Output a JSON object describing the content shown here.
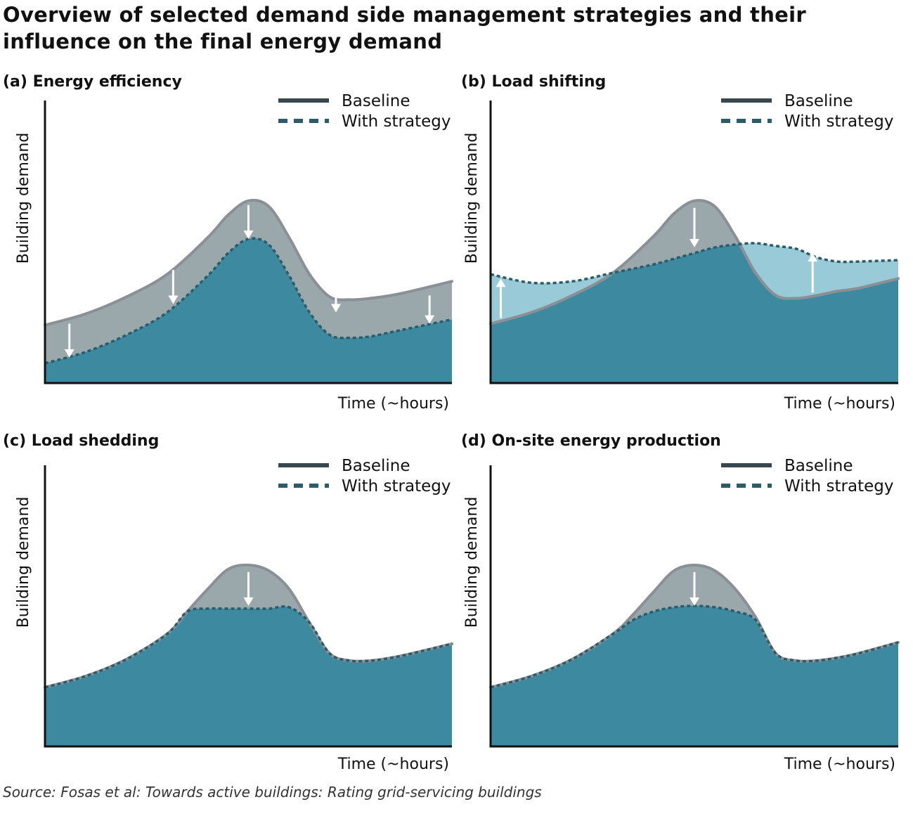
{
  "title": "Overview of selected demand side management strategies and their influence on the final energy demand",
  "source": "Source: Fosas et al: Towards active buildings: Rating grid-servicing buildings",
  "colors": {
    "baseline_line": "#8a9095",
    "baseline_fill": "#9aa7ab",
    "strategy_line": "#2b5c68",
    "strategy_fill": "#3d8aa0",
    "increase_fill": "#99cad8",
    "legend_baseline": "#36484d",
    "legend_strategy": "#2b5c68",
    "axis": "#111111",
    "arrow": "#ffffff"
  },
  "chart_data": [
    {
      "id": "a",
      "type": "area",
      "panel_title": "(a) Energy efficiency",
      "xlabel": "Time (~hours)",
      "ylabel": "Building demand",
      "xlim": [
        0,
        100
      ],
      "ylim": [
        0,
        100
      ],
      "grid": false,
      "legend": {
        "placement": "top-right",
        "entries": [
          "Baseline",
          "With strategy"
        ]
      },
      "x": [
        0,
        10,
        20,
        30,
        40,
        45,
        50,
        55,
        60,
        65,
        70,
        75,
        80,
        85,
        90,
        100
      ],
      "series": [
        {
          "name": "Baseline",
          "values": [
            20.5,
            24.5,
            30.5,
            38.5,
            51.5,
            59.5,
            64.5,
            62.5,
            51.5,
            38.5,
            30.5,
            29.5,
            30,
            31,
            32.5,
            36
          ]
        },
        {
          "name": "With strategy",
          "values": [
            7,
            11,
            17,
            25,
            38,
            46,
            51,
            49,
            38,
            25,
            17,
            16,
            16.5,
            18,
            19.5,
            22.5
          ]
        }
      ],
      "arrows": [
        {
          "x": 6,
          "from": 21,
          "to": 9
        },
        {
          "x": 31.5,
          "from": 40,
          "to": 28
        },
        {
          "x": 50,
          "from": 63,
          "to": 51
        },
        {
          "x": 71.5,
          "from": 35,
          "to": 25
        },
        {
          "x": 94.5,
          "from": 31,
          "to": 21
        }
      ]
    },
    {
      "id": "b",
      "type": "area",
      "panel_title": "(b) Load shifting",
      "xlabel": "Time (~hours)",
      "ylabel": "Building demand",
      "xlim": [
        0,
        100
      ],
      "ylim": [
        0,
        100
      ],
      "grid": false,
      "legend": {
        "placement": "top-right",
        "entries": [
          "Baseline",
          "With strategy"
        ]
      },
      "x": [
        0,
        10,
        20,
        30,
        40,
        45,
        50,
        55,
        60,
        65,
        70,
        75,
        80,
        85,
        90,
        100
      ],
      "series": [
        {
          "name": "Baseline",
          "values": [
            21,
            25,
            31,
            39,
            52,
            60,
            64.5,
            62.5,
            52,
            39,
            31,
            30,
            31,
            32.5,
            33.5,
            37
          ]
        },
        {
          "name": "With strategy",
          "values": [
            38.5,
            35.5,
            36,
            39,
            42,
            44,
            46,
            48,
            49,
            49.5,
            48.5,
            47.5,
            44.5,
            43,
            43,
            43.5
          ]
        }
      ],
      "arrows": [
        {
          "x": 50,
          "from": 62,
          "to": 48
        },
        {
          "x": 2.5,
          "from": 23,
          "to": 37
        },
        {
          "x": 79,
          "from": 32,
          "to": 46
        }
      ]
    },
    {
      "id": "c",
      "type": "area",
      "panel_title": "(c) Load shedding",
      "xlabel": "Time (~hours)",
      "ylabel": "Building demand",
      "xlim": [
        0,
        100
      ],
      "ylim": [
        0,
        100
      ],
      "grid": false,
      "legend": {
        "placement": "top-right",
        "entries": [
          "Baseline",
          "With strategy"
        ]
      },
      "x": [
        0,
        10,
        20,
        30,
        35,
        40,
        45,
        50,
        55,
        60,
        65,
        70,
        75,
        80,
        85,
        90,
        100
      ],
      "series": [
        {
          "name": "Baseline",
          "values": [
            21,
            25,
            31,
            40,
            48,
            56,
            63,
            64.5,
            62.5,
            56,
            44,
            33,
            30.5,
            30.5,
            31.5,
            33,
            36.5
          ]
        },
        {
          "name": "With strategy",
          "values": [
            21,
            25,
            31,
            40,
            48,
            49,
            49,
            49,
            49,
            49.5,
            44,
            33,
            30.5,
            30.5,
            31.5,
            33,
            36.5
          ]
        }
      ],
      "arrows": [
        {
          "x": 50,
          "from": 62,
          "to": 50
        }
      ]
    },
    {
      "id": "d",
      "type": "area",
      "panel_title": "(d) On-site energy production",
      "xlabel": "Time (~hours)",
      "ylabel": "Building demand",
      "xlim": [
        0,
        100
      ],
      "ylim": [
        0,
        100
      ],
      "grid": false,
      "legend": {
        "placement": "top-right",
        "entries": [
          "Baseline",
          "With strategy"
        ]
      },
      "x": [
        0,
        10,
        20,
        30,
        35,
        40,
        45,
        50,
        55,
        60,
        65,
        70,
        75,
        80,
        85,
        90,
        100
      ],
      "series": [
        {
          "name": "Baseline",
          "values": [
            21,
            25,
            31,
            40,
            47,
            55,
            62.5,
            64.5,
            62.5,
            56,
            46,
            33,
            30.5,
            30.5,
            31.5,
            33,
            37
          ]
        },
        {
          "name": "With strategy",
          "values": [
            21,
            25,
            31,
            40,
            45,
            48,
            49.5,
            50,
            49.5,
            48,
            45,
            33,
            30.5,
            30.5,
            31.5,
            33,
            37
          ]
        }
      ],
      "arrows": [
        {
          "x": 50,
          "from": 62,
          "to": 50
        }
      ]
    }
  ]
}
